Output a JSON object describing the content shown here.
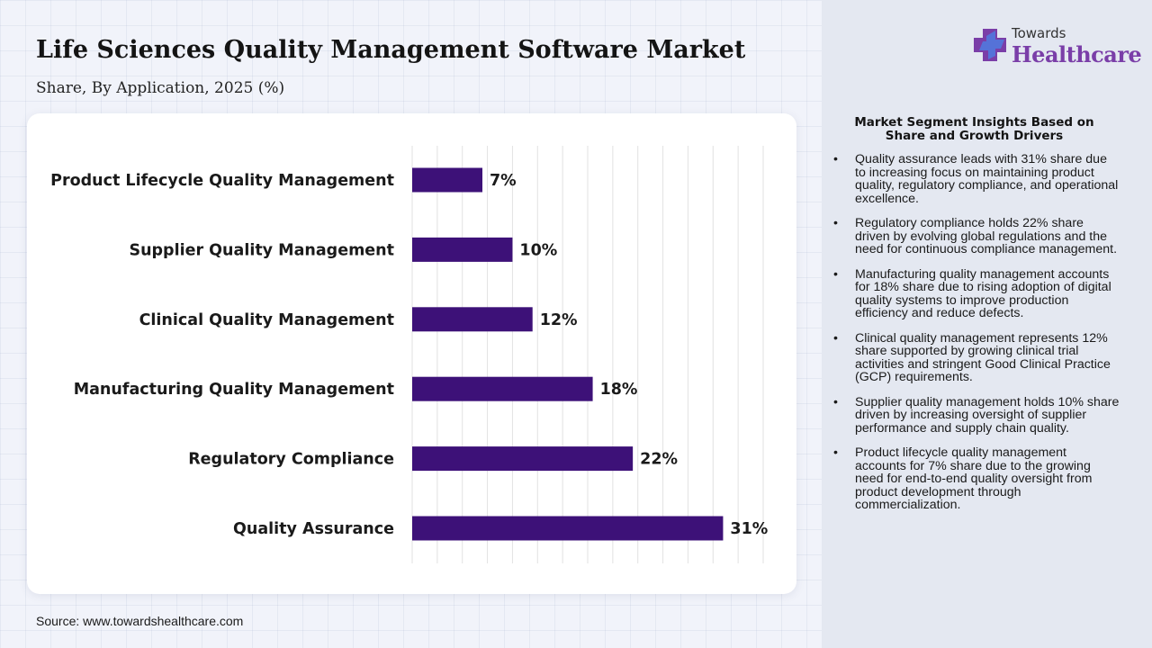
{
  "header": {
    "title": "Life Sciences Quality Management Software Market",
    "subtitle": "Share, By Application, 2025 (%)"
  },
  "logo": {
    "line1": "Towards",
    "line2": "Healthcare"
  },
  "colors": {
    "bar": "#3d1178",
    "logo_purple": "#7a3ea8",
    "logo_blue": "#3b6fd8",
    "right_panel_bg": "#e4e8f1"
  },
  "chart_data": {
    "type": "bar",
    "orientation": "horizontal",
    "categories": [
      "Product Lifecycle Quality Management",
      "Supplier Quality Management",
      "Clinical Quality Management",
      "Manufacturing Quality Management",
      "Regulatory Compliance",
      "Quality Assurance"
    ],
    "values": [
      7,
      10,
      12,
      18,
      22,
      31
    ],
    "value_labels": [
      "7%",
      "10%",
      "12%",
      "18%",
      "22%",
      "31%"
    ],
    "xlim": [
      0,
      35
    ],
    "grid": true,
    "grid_step": 2.5,
    "legend": "none"
  },
  "insights": {
    "title": "Market Segment Insights Based on Share and Growth Drivers",
    "bullet_icon": "•",
    "items": [
      "Quality assurance leads with 31% share due to increasing focus on maintaining product quality, regulatory compliance, and operational excellence.",
      "Regulatory compliance holds 22% share driven by evolving global regulations and the need for continuous compliance management.",
      "Manufacturing quality management accounts for 18% share due to rising adoption of digital quality systems to improve production efficiency and reduce defects.",
      "Clinical quality management represents 12% share supported by growing clinical trial activities and stringent Good Clinical Practice (GCP) requirements.",
      "Supplier quality management holds 10% share driven by increasing oversight of supplier performance and supply chain quality.",
      "Product lifecycle quality management accounts for 7% share due to the growing need for end-to-end quality oversight from product development through commercialization."
    ]
  },
  "footer": {
    "source": "Source: www.towardshealthcare.com"
  }
}
